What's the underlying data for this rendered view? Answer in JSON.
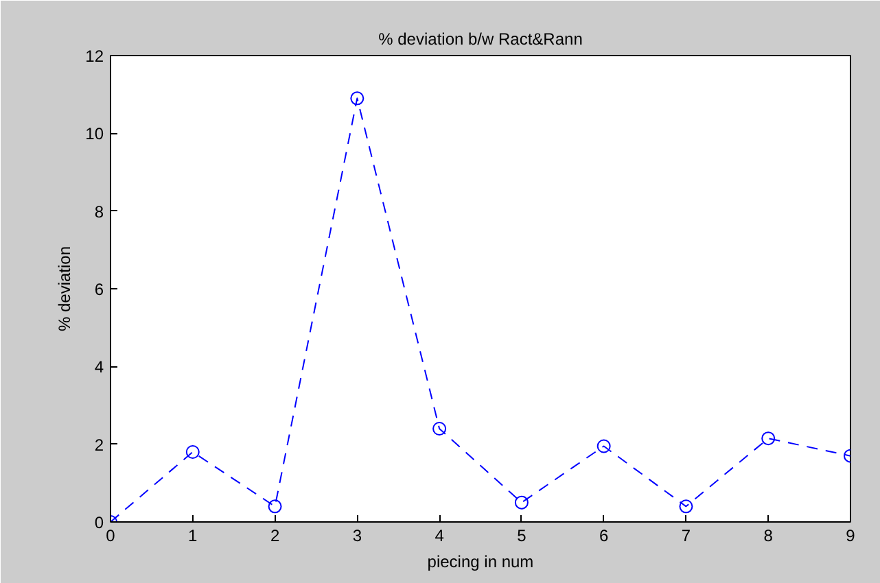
{
  "chart_data": {
    "type": "line",
    "title": "% deviation b/w Ract&Rann",
    "xlabel": "piecing in num",
    "ylabel": "% deviation",
    "x": [
      0,
      1,
      2,
      3,
      4,
      5,
      6,
      7,
      8,
      9
    ],
    "series": [
      {
        "color": "#0000ff",
        "values": [
          0,
          1.8,
          0.4,
          10.9,
          2.4,
          0.5,
          1.95,
          0.4,
          2.15,
          1.7
        ]
      }
    ],
    "xlim": [
      0,
      9
    ],
    "ylim": [
      0,
      12
    ],
    "xticks": [
      0,
      1,
      2,
      3,
      4,
      5,
      6,
      7,
      8,
      9
    ],
    "yticks": [
      0,
      2,
      4,
      6,
      8,
      10,
      12
    ],
    "marker": "circle",
    "line_style": "dashed",
    "grid": false
  }
}
